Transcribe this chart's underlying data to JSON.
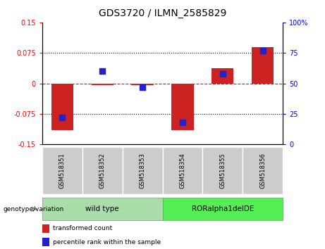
{
  "title": "GDS3720 / ILMN_2585829",
  "samples": [
    "GSM518351",
    "GSM518352",
    "GSM518353",
    "GSM518354",
    "GSM518355",
    "GSM518356"
  ],
  "red_values": [
    -0.115,
    -0.004,
    -0.004,
    -0.115,
    0.038,
    0.09
  ],
  "blue_values_pct": [
    22,
    60,
    47,
    18,
    58,
    77
  ],
  "ylim_left": [
    -0.15,
    0.15
  ],
  "ylim_right": [
    0,
    100
  ],
  "yticks_left": [
    -0.15,
    -0.075,
    0,
    0.075,
    0.15
  ],
  "yticks_right": [
    0,
    25,
    50,
    75,
    100
  ],
  "ytick_labels_left": [
    "-0.15",
    "-0.075",
    "0",
    "0.075",
    "0.15"
  ],
  "ytick_labels_right": [
    "0",
    "25",
    "50",
    "75",
    "100%"
  ],
  "hlines_dotted": [
    -0.075,
    0.075
  ],
  "hline_dashed": 0,
  "bar_color": "#CC2222",
  "dot_color": "#2222CC",
  "bar_width": 0.55,
  "dot_size": 30,
  "legend_red": "transformed count",
  "legend_blue": "percentile rank within the sample",
  "title_fontsize": 10,
  "tick_fontsize": 7,
  "label_fontsize": 7.5,
  "group_label": "genotype/variation",
  "wt_color": "#AADDAA",
  "ror_color": "#55EE55",
  "tick_bg_color": "#CCCCCC"
}
